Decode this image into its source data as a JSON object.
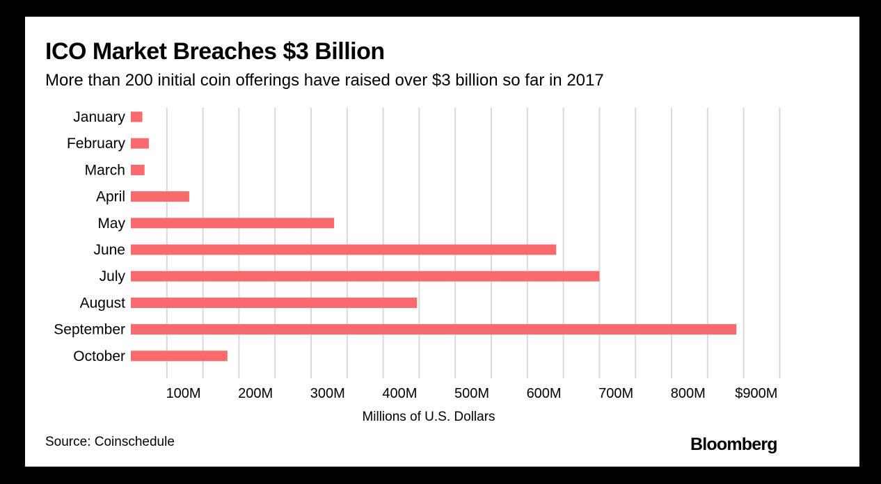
{
  "title": "ICO Market Breaches $3 Billion",
  "subtitle": "More than 200 initial coin offerings have raised over $3 billion so far in 2017",
  "source": "Source: Coinschedule",
  "brand": "Bloomberg",
  "colors": {
    "bar": "#f86a6b",
    "grid": "#d9d9d9",
    "frame": "#000000",
    "background": "#ffffff"
  },
  "chart_data": {
    "type": "bar",
    "orientation": "horizontal",
    "title": "ICO Market Breaches $3 Billion",
    "subtitle": "More than 200 initial coin offerings have raised over $3 billion so far in 2017",
    "xlabel": "Millions of U.S. Dollars",
    "ylabel": "",
    "categories": [
      "January",
      "February",
      "March",
      "April",
      "May",
      "June",
      "July",
      "August",
      "September",
      "October"
    ],
    "values": [
      16,
      25,
      19,
      81,
      282,
      590,
      650,
      397,
      840,
      134
    ],
    "xlim": [
      0,
      900
    ],
    "xticks": [
      {
        "value": 100,
        "label": "100M"
      },
      {
        "value": 200,
        "label": "200M"
      },
      {
        "value": 300,
        "label": "300M"
      },
      {
        "value": 400,
        "label": "400M"
      },
      {
        "value": 500,
        "label": "500M"
      },
      {
        "value": 600,
        "label": "600M"
      },
      {
        "value": 700,
        "label": "700M"
      },
      {
        "value": 800,
        "label": "800M"
      },
      {
        "value": 900,
        "label": "$900M"
      }
    ],
    "grid": true,
    "legend": "none"
  }
}
